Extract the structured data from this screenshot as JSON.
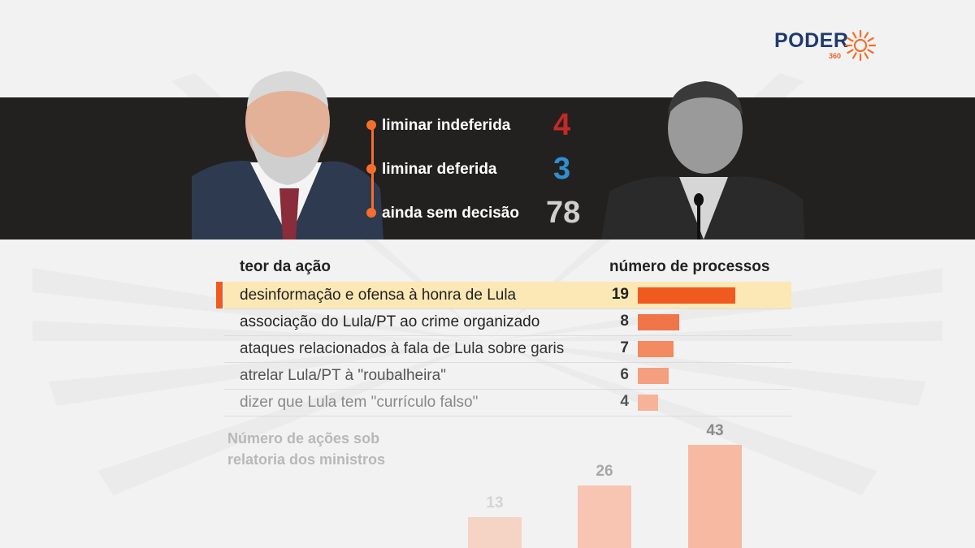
{
  "brand": {
    "name": "PODER",
    "sub": "360",
    "accent": "#f36f2a",
    "navy": "#1f3b6b"
  },
  "stats": [
    {
      "label": "liminar indeferida",
      "value": "4",
      "color": "#c22a27"
    },
    {
      "label": "liminar deferida",
      "value": "3",
      "color": "#2f8fd0"
    },
    {
      "label": "ainda sem decisão",
      "value": "78",
      "color": "#cfcfcf"
    }
  ],
  "table": {
    "col_left": "teor da ação",
    "col_right": "número de processos"
  },
  "ministers": {
    "title": "Número de ações sob relatoria dos ministros"
  },
  "chart_data": [
    {
      "type": "bar",
      "orientation": "horizontal",
      "categories": [
        "desinformação e ofensa à honra de Lula",
        "associação do Lula/PT ao crime organizado",
        "ataques relacionados à fala de Lula sobre garis",
        "atrelar Lula/PT à \"roubalheira\"",
        "dizer que Lula tem \"currículo falso\""
      ],
      "values": [
        19,
        8,
        7,
        6,
        4
      ],
      "highlight_index": 0,
      "colors": [
        "#f05a1e",
        "#f07548",
        "#f28a62",
        "#f49f7f",
        "#f6b39a"
      ]
    },
    {
      "type": "bar",
      "orientation": "vertical",
      "title": "Número de ações sob relatoria dos ministros",
      "values": [
        13,
        26,
        43
      ],
      "color": "#f7b9a1"
    }
  ]
}
